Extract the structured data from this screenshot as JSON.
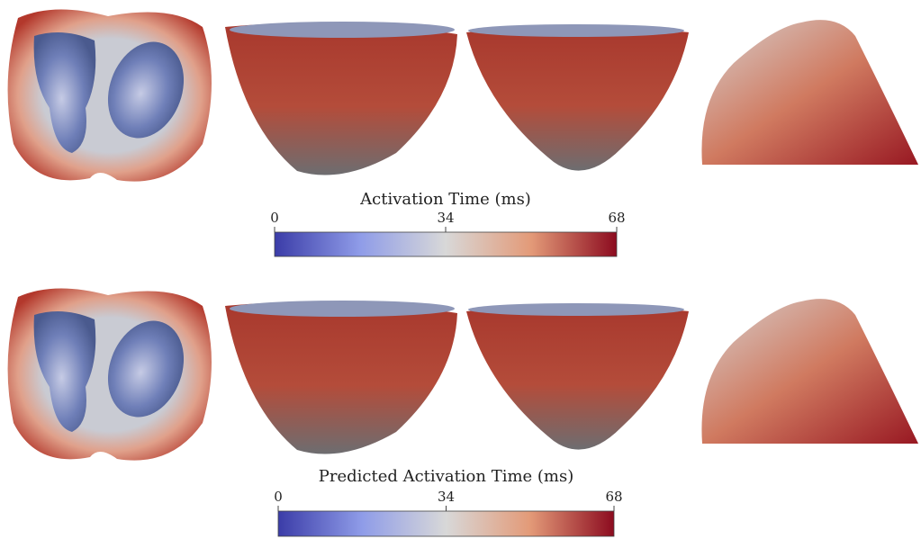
{
  "colorbars": [
    {
      "title": "Activation Time (ms)",
      "range": [
        0,
        68
      ],
      "ticks": [
        0,
        34,
        68
      ]
    },
    {
      "title": "Predicted Activation Time (ms)",
      "range": [
        0,
        68
      ],
      "ticks": [
        0,
        34,
        68
      ]
    }
  ]
}
